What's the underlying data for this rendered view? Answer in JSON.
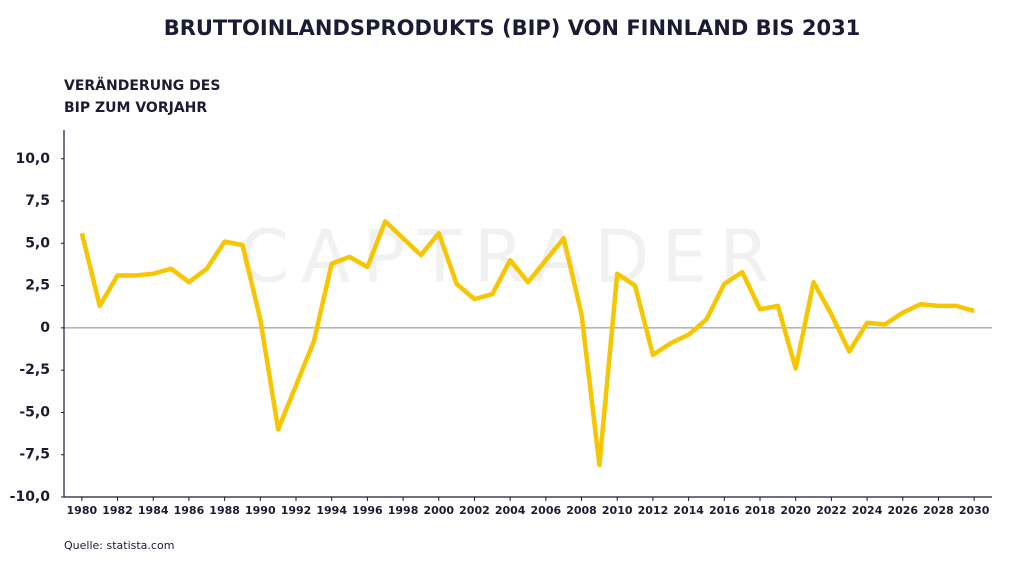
{
  "chart_data": {
    "type": "line",
    "title": "BRUTTOINLANDSPRODUKTS (BIP) VON FINNLAND BIS 2031",
    "ylabel": [
      "VERÄNDERUNG DES",
      "BIP ZUM VORJAHR"
    ],
    "source": "Quelle: statista.com",
    "watermark": "CAPTRADER",
    "x": [
      1980,
      1981,
      1982,
      1983,
      1984,
      1985,
      1986,
      1987,
      1988,
      1989,
      1990,
      1991,
      1992,
      1993,
      1994,
      1995,
      1996,
      1997,
      1998,
      1999,
      2000,
      2001,
      2002,
      2003,
      2004,
      2005,
      2006,
      2007,
      2008,
      2009,
      2010,
      2011,
      2012,
      2013,
      2014,
      2015,
      2016,
      2017,
      2018,
      2019,
      2020,
      2021,
      2022,
      2023,
      2024,
      2025,
      2026,
      2027,
      2028,
      2029,
      2030
    ],
    "series": [
      {
        "color": "#f7c600",
        "values": [
          5.6,
          1.3,
          3.1,
          3.1,
          3.2,
          3.5,
          2.7,
          3.5,
          5.1,
          4.9,
          0.5,
          -6.0,
          -3.4,
          -0.8,
          3.8,
          4.2,
          3.6,
          6.3,
          5.3,
          4.3,
          5.6,
          2.6,
          1.7,
          2.0,
          4.0,
          2.7,
          4.0,
          5.3,
          0.8,
          -8.1,
          3.2,
          2.5,
          -1.6,
          -0.9,
          -0.4,
          0.5,
          2.6,
          3.3,
          1.1,
          1.3,
          -2.4,
          2.7,
          0.8,
          -1.4,
          0.3,
          0.2,
          0.9,
          1.4,
          1.3,
          1.3,
          1.0
        ]
      }
    ],
    "xlim": [
      1979,
      2031
    ],
    "xticks": [
      1980,
      1982,
      1984,
      1986,
      1988,
      1990,
      1992,
      1994,
      1996,
      1998,
      2000,
      2002,
      2004,
      2006,
      2008,
      2010,
      2012,
      2014,
      2016,
      2018,
      2020,
      2022,
      2024,
      2026,
      2028,
      2030
    ],
    "ylim": [
      -10,
      11.7
    ],
    "yticks": [
      {
        "value": -10,
        "label": "-10,0"
      },
      {
        "value": -7.5,
        "label": "-7,5"
      },
      {
        "value": -5,
        "label": "-5,0"
      },
      {
        "value": -2.5,
        "label": "-2,5"
      },
      0,
      {
        "value": 2.5,
        "label": "2,5"
      },
      {
        "value": 5,
        "label": "5,0"
      },
      {
        "value": 7.5,
        "label": "7,5"
      },
      {
        "value": 10,
        "label": "10,0"
      }
    ]
  }
}
